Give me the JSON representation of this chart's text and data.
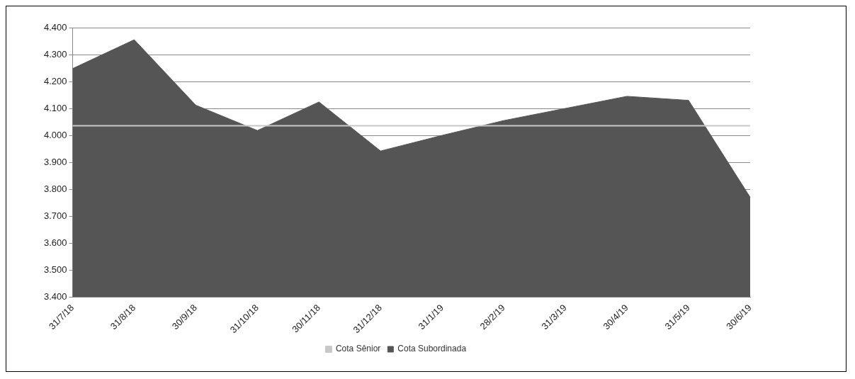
{
  "chart_data": {
    "type": "area",
    "categories": [
      "31/7/18",
      "31/8/18",
      "30/9/18",
      "31/10/18",
      "30/11/18",
      "31/12/18",
      "31/1/19",
      "28/2/19",
      "31/3/19",
      "30/4/19",
      "31/5/19",
      "30/6/19"
    ],
    "series": [
      {
        "name": "Cota Subordinada",
        "color": "#555555",
        "values": [
          4248,
          4355,
          4112,
          4018,
          4124,
          3942,
          4000,
          4055,
          4100,
          4145,
          4130,
          3770
        ]
      },
      {
        "name": "Cota Sênior",
        "type": "line",
        "color": "#c8c8c8",
        "values": [
          4036,
          4036,
          4036,
          4036,
          4036,
          4036,
          4036,
          4036,
          4036,
          4036,
          4036,
          4036
        ]
      }
    ],
    "ylim": [
      3400,
      4400
    ],
    "yticks": [
      {
        "value": 3400,
        "label": "3.400"
      },
      {
        "value": 3500,
        "label": "3.500"
      },
      {
        "value": 3600,
        "label": "3.600"
      },
      {
        "value": 3700,
        "label": "3.700"
      },
      {
        "value": 3800,
        "label": "3.800"
      },
      {
        "value": 3900,
        "label": "3.900"
      },
      {
        "value": 4000,
        "label": "4.000"
      },
      {
        "value": 4100,
        "label": "4.100"
      },
      {
        "value": 4200,
        "label": "4.200"
      },
      {
        "value": 4300,
        "label": "4.300"
      },
      {
        "value": 4400,
        "label": "4.400"
      }
    ],
    "grid": "y",
    "legend": "bottom",
    "marker": "none"
  }
}
